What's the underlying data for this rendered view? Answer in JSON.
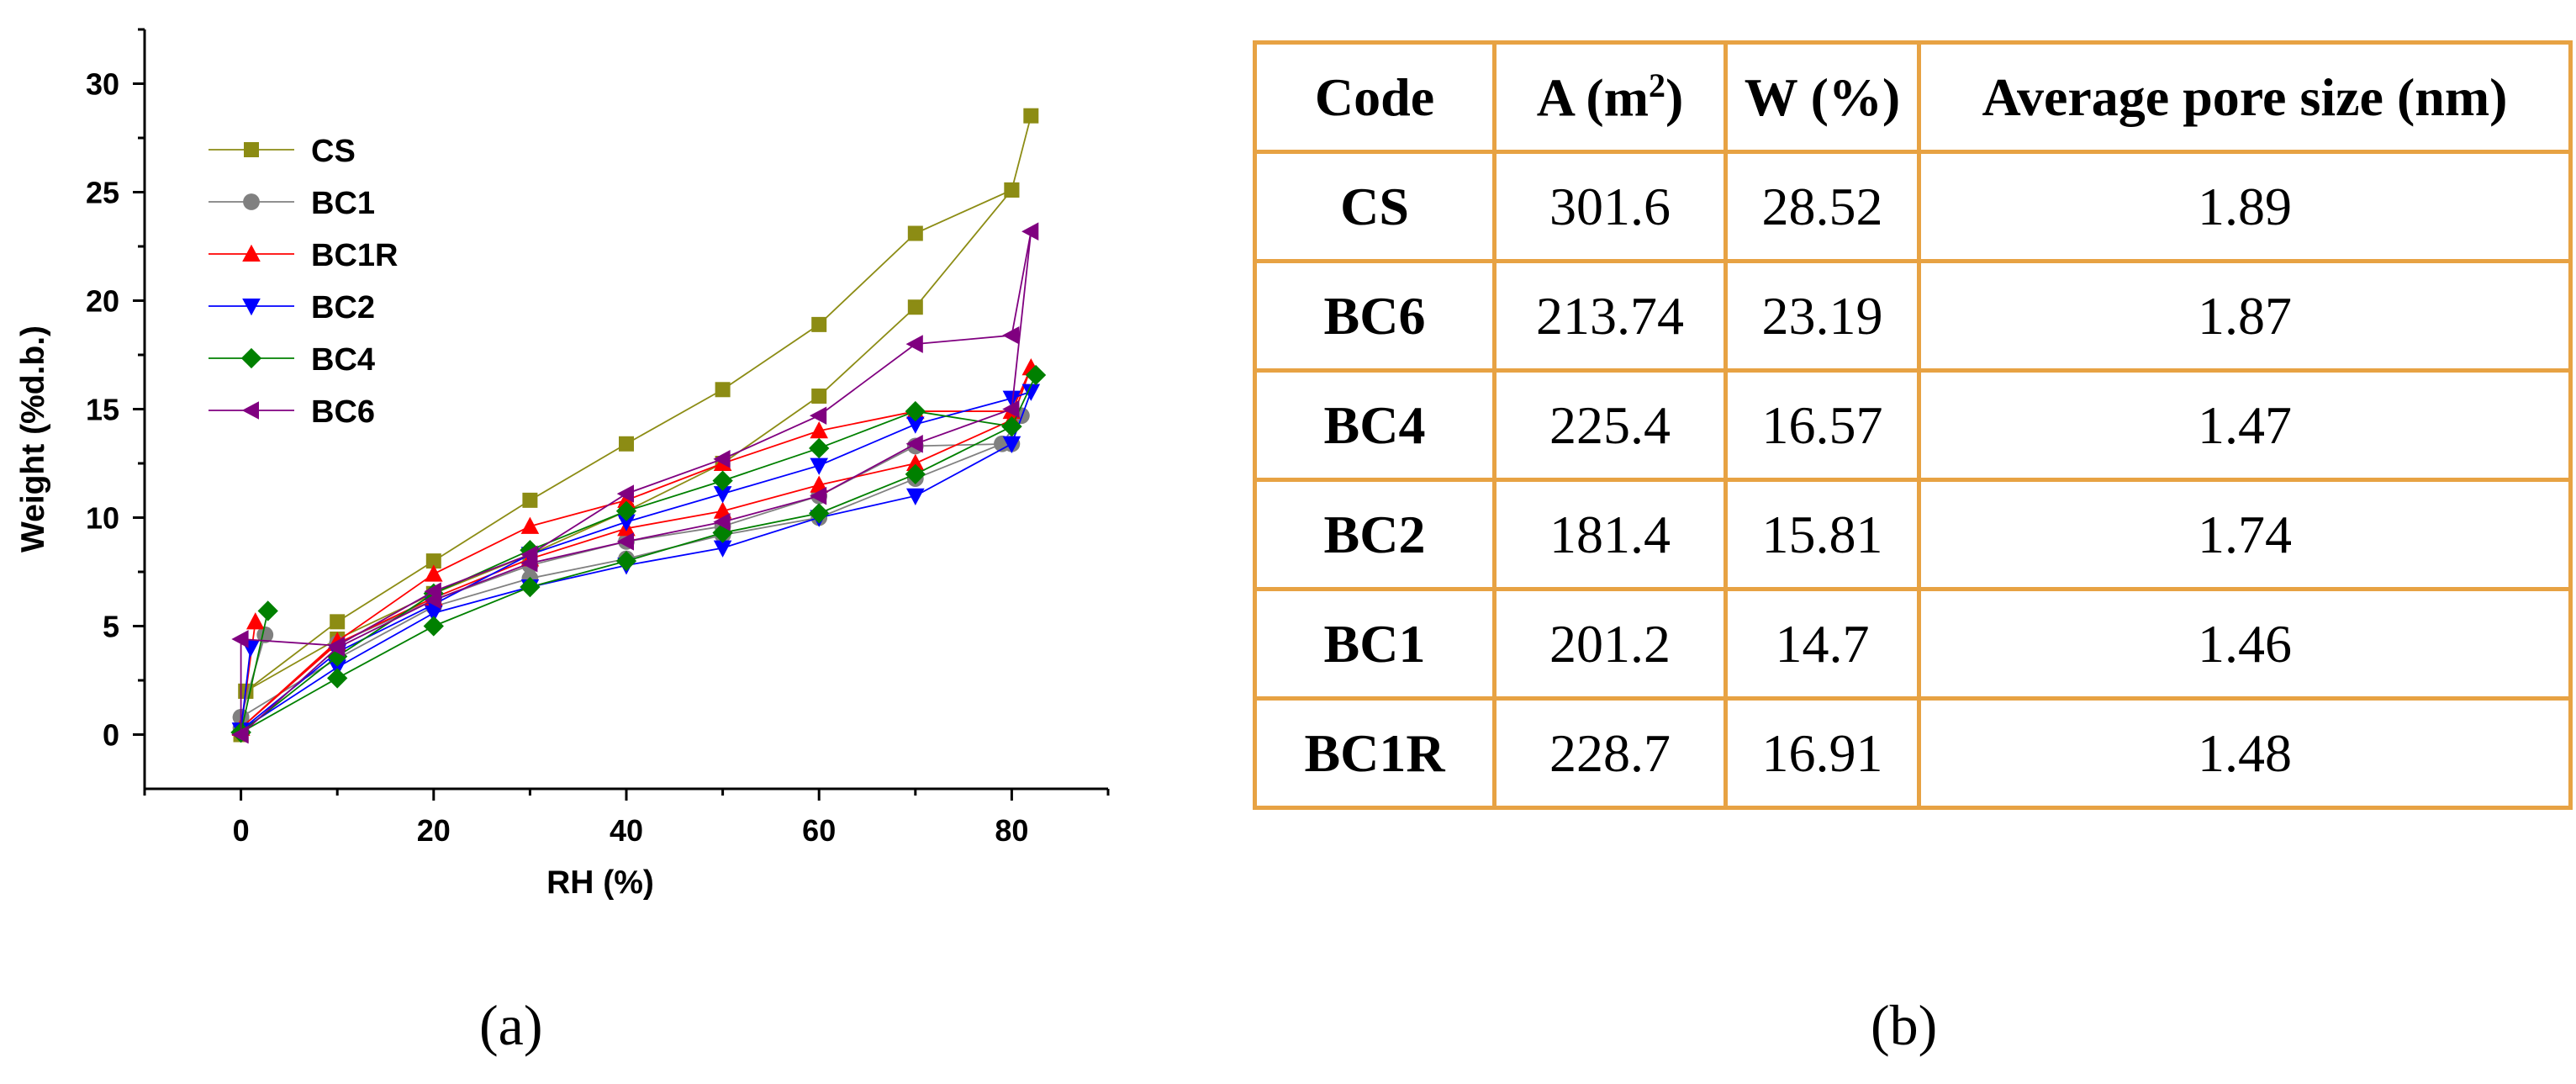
{
  "chart_data": {
    "type": "line",
    "title": "",
    "xlabel": "RH (%)",
    "ylabel": "Weight (%d.b.)",
    "xlim": [
      -10,
      90
    ],
    "ylim": [
      -2.5,
      32.5
    ],
    "xticks": [
      0,
      20,
      40,
      60,
      80
    ],
    "xtick_labels": [
      "0",
      "20",
      "40",
      "60",
      "80"
    ],
    "yticks": [
      0,
      5,
      10,
      15,
      20,
      25,
      30
    ],
    "ytick_labels": [
      "0",
      "5",
      "10",
      "15",
      "20",
      "25",
      "30"
    ],
    "grid": false,
    "legend": "top-left",
    "series": [
      {
        "name": "CS",
        "color": "#8C8C14",
        "marker": "square",
        "x": [
          0,
          0.5,
          10,
          20,
          30,
          40,
          50,
          60,
          70,
          80,
          82,
          80,
          70,
          60,
          50,
          40,
          30,
          20,
          10,
          0.5,
          0
        ],
        "y": [
          0,
          2,
          5.2,
          8,
          10.8,
          13.4,
          15.9,
          18.9,
          23.1,
          25.1,
          28.52,
          25.1,
          19.7,
          15.6,
          12.5,
          10.3,
          8.3,
          6.5,
          4.4,
          2,
          0
        ]
      },
      {
        "name": "BC1",
        "color": "#808080",
        "marker": "circle",
        "x": [
          0,
          2.5,
          0,
          10,
          20,
          30,
          40,
          50,
          60,
          70,
          79,
          81,
          80,
          70,
          60,
          50,
          40,
          30,
          20,
          10,
          0
        ],
        "y": [
          0.8,
          4.6,
          0.8,
          3.5,
          5.9,
          7.2,
          8.1,
          9.2,
          10,
          11.8,
          13.4,
          14.7,
          13.4,
          13.3,
          11,
          9.6,
          8.9,
          7.8,
          6.2,
          4.2,
          0.3
        ]
      },
      {
        "name": "BC1R",
        "color": "#FF0000",
        "marker": "triangle-up",
        "x": [
          0,
          1.5,
          0,
          10,
          20,
          30,
          40,
          50,
          60,
          70,
          80,
          82,
          80,
          70,
          60,
          50,
          40,
          30,
          20,
          10,
          0
        ],
        "y": [
          0.3,
          5.2,
          0.3,
          4.3,
          7.4,
          9.6,
          10.8,
          12.5,
          14,
          14.9,
          14.9,
          16.91,
          14.5,
          12.5,
          11.5,
          10.3,
          9.5,
          8.1,
          6.3,
          4.2,
          0.3
        ]
      },
      {
        "name": "BC2",
        "color": "#0000FF",
        "marker": "triangle-down",
        "x": [
          0,
          1,
          0,
          10,
          20,
          30,
          40,
          50,
          60,
          70,
          80,
          82,
          80,
          70,
          60,
          50,
          40,
          30,
          20,
          10,
          0
        ],
        "y": [
          0.2,
          4,
          0.2,
          3.1,
          5.6,
          6.8,
          7.8,
          8.6,
          10,
          11,
          13.4,
          15.81,
          15.5,
          14.3,
          12.4,
          11.1,
          9.8,
          8.3,
          6,
          3.8,
          0.2
        ]
      },
      {
        "name": "BC4",
        "color": "#008000",
        "marker": "diamond",
        "x": [
          0,
          2.8,
          0,
          10,
          20,
          30,
          40,
          50,
          60,
          70,
          80,
          82.5,
          80,
          70,
          60,
          50,
          40,
          30,
          20,
          10,
          0
        ],
        "y": [
          0.1,
          5.7,
          0.1,
          2.6,
          5,
          6.8,
          8,
          9.3,
          10.2,
          12,
          14.2,
          16.57,
          14.2,
          14.9,
          13.2,
          11.7,
          10.3,
          8.5,
          6.5,
          3.6,
          0.1
        ]
      },
      {
        "name": "BC6",
        "color": "#800080",
        "marker": "triangle-left",
        "x": [
          0,
          0,
          10,
          20,
          30,
          40,
          50,
          60,
          70,
          80,
          82,
          80,
          70,
          60,
          50,
          40,
          30,
          20,
          10,
          0
        ],
        "y": [
          0,
          4.4,
          4.1,
          6.6,
          8.3,
          11.1,
          12.7,
          14.7,
          18,
          18.4,
          23.19,
          15,
          13.4,
          11,
          9.8,
          8.9,
          7.9,
          6.2,
          4,
          0
        ]
      }
    ]
  },
  "figure": {
    "label_a": "(a)",
    "label_b": "(b)"
  },
  "table": {
    "headers": {
      "code": "Code",
      "area_base": "A (m",
      "area_exp": "2",
      "area_close": ")",
      "water": "W (%)",
      "pore": "Average pore size (nm)"
    },
    "rows": [
      {
        "code": "CS",
        "area": "301.6",
        "water": "28.52",
        "pore": "1.89"
      },
      {
        "code": "BC6",
        "area": "213.74",
        "water": "23.19",
        "pore": "1.87"
      },
      {
        "code": "BC4",
        "area": "225.4",
        "water": "16.57",
        "pore": "1.47"
      },
      {
        "code": "BC2",
        "area": "181.4",
        "water": "15.81",
        "pore": "1.74"
      },
      {
        "code": "BC1",
        "area": "201.2",
        "water": "14.7",
        "pore": "1.46"
      },
      {
        "code": "BC1R",
        "area": "228.7",
        "water": "16.91",
        "pore": "1.48"
      }
    ]
  }
}
